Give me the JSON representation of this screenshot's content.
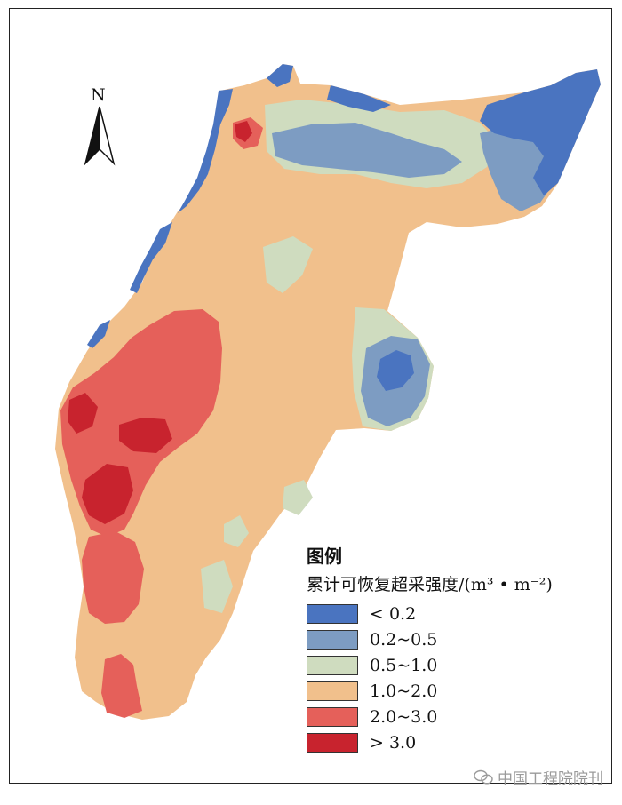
{
  "map": {
    "north_label": "N",
    "legend": {
      "title": "图例",
      "subtitle": "累计可恢复超采强度/(m³ • m⁻²)",
      "items": [
        {
          "label": "< 0.2",
          "color": "#4a74c0"
        },
        {
          "label": "0.2~0.5",
          "color": "#7d9cc2"
        },
        {
          "label": "0.5~1.0",
          "color": "#cfdcbf"
        },
        {
          "label": "1.0~2.0",
          "color": "#f1c08c"
        },
        {
          "label": "2.0~3.0",
          "color": "#e5605a"
        },
        {
          "label": "> 3.0",
          "color": "#c8232e"
        }
      ]
    }
  },
  "watermark": {
    "text": "中国工程院院刊"
  }
}
